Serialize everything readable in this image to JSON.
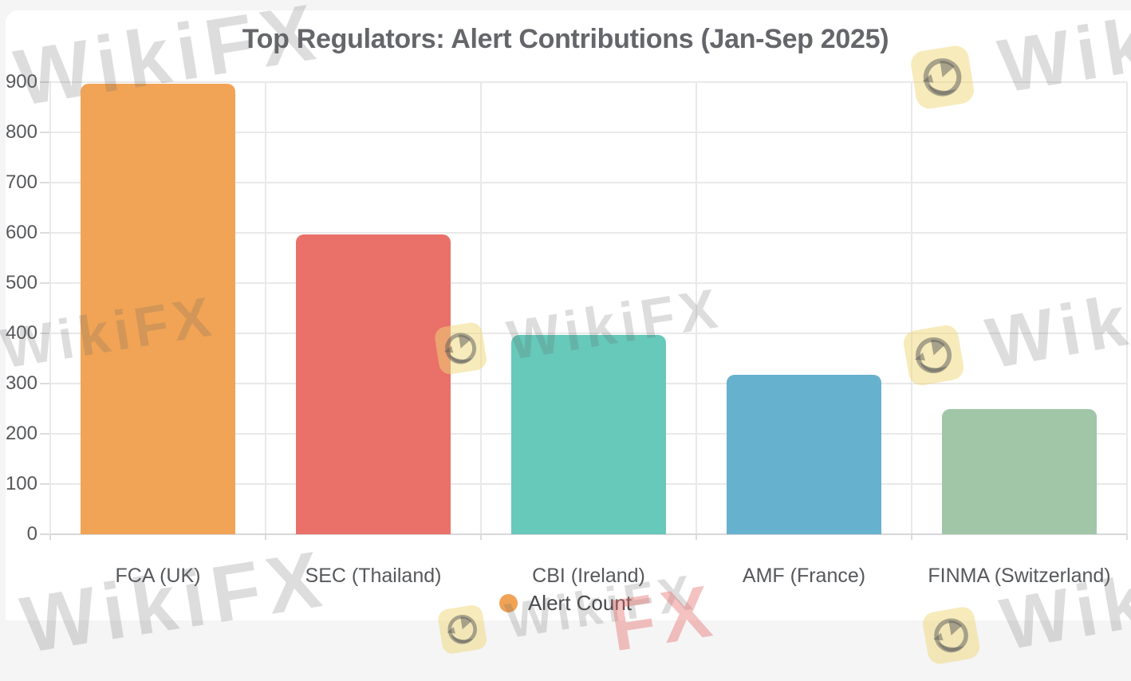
{
  "title": "Top Regulators: Alert Contributions (Jan-Sep 2025)",
  "legend": {
    "position": "bottom",
    "items": [
      {
        "label": "Alert Count",
        "color": "#F0A354"
      }
    ]
  },
  "watermark": {
    "brand": "WikiFX",
    "fragment": "FX",
    "logo": "wikifx-eagle-badge"
  },
  "chart_data": {
    "type": "bar",
    "title": "Top Regulators: Alert Contributions (Jan-Sep 2025)",
    "categories": [
      "FCA (UK)",
      "SEC (Thailand)",
      "CBI (Ireland)",
      "AMF (France)",
      "FINMA (Switzerland)"
    ],
    "series": [
      {
        "name": "Alert Count",
        "values": [
          897,
          597,
          397,
          318,
          250
        ],
        "colors": [
          "#F1A455",
          "#E97169",
          "#66C9BA",
          "#66B1CE",
          "#A1C6A7"
        ]
      }
    ],
    "xlabel": "",
    "ylabel": "",
    "ylim": [
      0,
      900
    ],
    "yticks": [
      0,
      100,
      200,
      300,
      400,
      500,
      600,
      700,
      800,
      900
    ],
    "grid": true,
    "legend_position": "bottom"
  }
}
